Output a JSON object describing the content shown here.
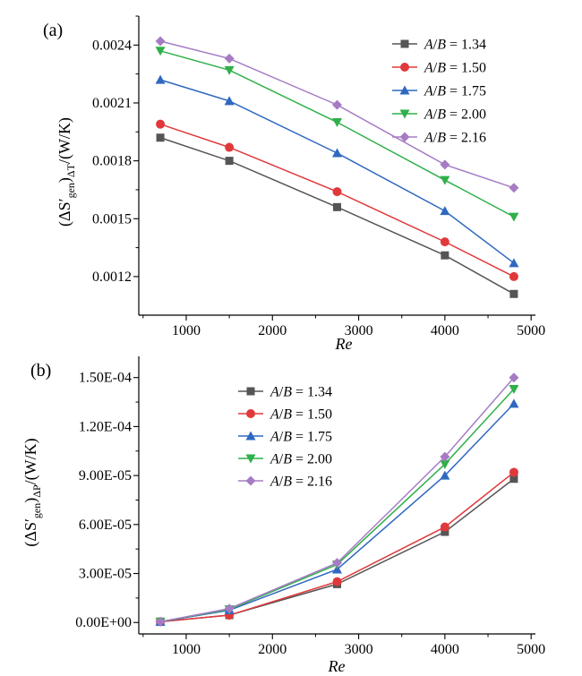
{
  "chart_data": [
    {
      "type": "line",
      "panel_label": "(a)",
      "ylabel": "(ΔS′gen)ΔT/(W/K)",
      "xlabel": "Re",
      "x": [
        700,
        1500,
        2750,
        4000,
        4800
      ],
      "xlim": [
        450,
        5050
      ],
      "xticks": [
        1000,
        2000,
        3000,
        4000,
        5000
      ],
      "ylim": [
        0.001,
        0.00255
      ],
      "yticks": [
        0.0012,
        0.0015,
        0.0018,
        0.0021,
        0.0024
      ],
      "ytick_labels": [
        "0.0012",
        "0.0015",
        "0.0018",
        "0.0021",
        "0.0024"
      ],
      "legend_position": "top-right",
      "series": [
        {
          "name": "A/B = 1.34",
          "color": "#555555",
          "marker": "square",
          "values": [
            0.00192,
            0.0018,
            0.00156,
            0.00131,
            0.00111
          ]
        },
        {
          "name": "A/B = 1.50",
          "color": "#e0393b",
          "marker": "circle",
          "values": [
            0.00199,
            0.00187,
            0.00164,
            0.00138,
            0.0012
          ]
        },
        {
          "name": "A/B = 1.75",
          "color": "#2f68c0",
          "marker": "triangle-up",
          "values": [
            0.00222,
            0.00211,
            0.00184,
            0.00154,
            0.00127
          ]
        },
        {
          "name": "A/B = 2.00",
          "color": "#2fb04a",
          "marker": "triangle-down",
          "values": [
            0.00237,
            0.00227,
            0.002,
            0.0017,
            0.00151
          ]
        },
        {
          "name": "A/B = 2.16",
          "color": "#a57cc4",
          "marker": "diamond",
          "values": [
            0.00242,
            0.00233,
            0.00209,
            0.00178,
            0.00166
          ]
        }
      ]
    },
    {
      "type": "line",
      "panel_label": "(b)",
      "ylabel": "(ΔS′gen)ΔP/(W/K)",
      "xlabel": "Re",
      "x": [
        700,
        1500,
        2750,
        4000,
        4800
      ],
      "xlim": [
        450,
        5050
      ],
      "xticks": [
        1000,
        2000,
        3000,
        4000,
        5000
      ],
      "ylim": [
        -7e-06,
        0.000163
      ],
      "yticks": [
        0,
        3e-05,
        6e-05,
        9e-05,
        0.00012,
        0.00015
      ],
      "ytick_labels": [
        "0.00E+00",
        "3.00E-05",
        "6.00E-05",
        "9.00E-05",
        "1.20E-04",
        "1.50E-04"
      ],
      "legend_position": "top-left",
      "series": [
        {
          "name": "A/B = 1.34",
          "color": "#555555",
          "marker": "square",
          "values": [
            5e-07,
            4.5e-06,
            2.35e-05,
            5.55e-05,
            8.8e-05
          ]
        },
        {
          "name": "A/B = 1.50",
          "color": "#e0393b",
          "marker": "circle",
          "values": [
            5e-07,
            4.5e-06,
            2.5e-05,
            5.85e-05,
            9.2e-05
          ]
        },
        {
          "name": "A/B = 1.75",
          "color": "#2f68c0",
          "marker": "triangle-up",
          "values": [
            5e-07,
            7.5e-06,
            3.25e-05,
            9e-05,
            0.000134
          ]
        },
        {
          "name": "A/B = 2.00",
          "color": "#2fb04a",
          "marker": "triangle-down",
          "values": [
            5e-07,
            8e-06,
            3.55e-05,
            9.7e-05,
            0.000143
          ]
        },
        {
          "name": "A/B = 2.16",
          "color": "#a57cc4",
          "marker": "diamond",
          "values": [
            5e-07,
            8.5e-06,
            3.65e-05,
            0.0001015,
            0.00015
          ]
        }
      ]
    }
  ]
}
